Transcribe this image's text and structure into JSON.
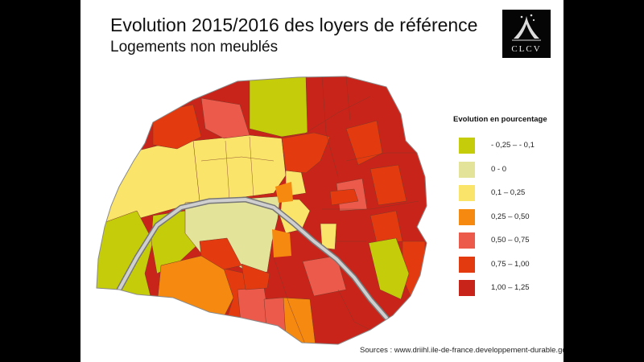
{
  "title": "Evolution 2015/2016 des loyers de référence",
  "subtitle": "Logements non meublés",
  "logo": {
    "text": "CLCV",
    "icon": "clcv-figure-icon"
  },
  "legend": {
    "title": "Evolution en pourcentage",
    "items": [
      {
        "label": "- 0,25 – - 0,1",
        "color": "#c5cc0a"
      },
      {
        "label": "0 - 0",
        "color": "#e3e39a"
      },
      {
        "label": "0,1 – 0,25",
        "color": "#fbe46a"
      },
      {
        "label": "0,25 – 0,50",
        "color": "#f6890f"
      },
      {
        "label": "0,50 – 0,75",
        "color": "#ec5a4c"
      },
      {
        "label": "0,75 – 1,00",
        "color": "#e43a0f"
      },
      {
        "label": "1,00 – 1,25",
        "color": "#c9241a"
      }
    ]
  },
  "source": "Sources : www.driihl.ile-de-france.developpement-durable.gouv.fr"
}
